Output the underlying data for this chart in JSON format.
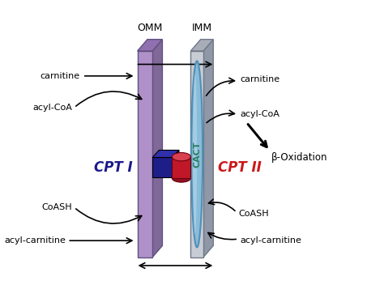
{
  "bg_color": "#ffffff",
  "omm_label": "OMM",
  "imm_label": "IMM",
  "cact_label": "CACT",
  "cpt1_label": "CPT I",
  "cpt2_label": "CPT II",
  "beta_ox_label": "β-Oxidation",
  "left_top": [
    "carnitine",
    "acyl-CoA"
  ],
  "left_bottom": [
    "CoASH",
    "acyl-carnitine"
  ],
  "right_top": [
    "carnitine",
    "acyl-CoA"
  ],
  "right_bottom": [
    "CoASH",
    "acyl-carnitine"
  ],
  "omm_front_color": "#b090c8",
  "omm_top_color": "#9070b0",
  "omm_side_color": "#806898",
  "omm_edge": "#605080",
  "imm_front_color": "#c8ccd4",
  "imm_top_color": "#a8adb8",
  "imm_side_color": "#9098a8",
  "imm_edge": "#707888",
  "cact_fill": "#88bcd8",
  "cact_edge": "#5090b8",
  "cact_highlight": "#b8d8ee",
  "cube_front": "#1e1e88",
  "cube_top": "#3030aa",
  "cube_side": "#0c0c60",
  "cyl_body": "#c01828",
  "cyl_top": "#d84050",
  "cyl_bottom": "#901020",
  "cpt1_color": "#1a1a8a",
  "cpt2_color": "#cc1818",
  "arrow_color": "#111111",
  "figsize": [
    4.74,
    3.52
  ],
  "dpi": 100
}
